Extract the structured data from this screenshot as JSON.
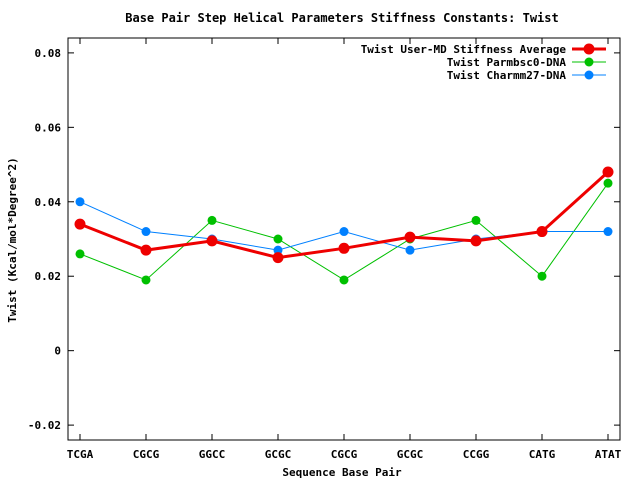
{
  "chart_data": {
    "type": "line",
    "title": "Base Pair Step Helical Parameters Stiffness Constants: Twist",
    "xlabel": "Sequence Base Pair",
    "ylabel": "Twist (Kcal/mol*Degree^2)",
    "categories": [
      "TCGA",
      "CGCG",
      "GGCC",
      "GCGC",
      "CGCG",
      "GCGC",
      "CCGG",
      "CATG",
      "ATAT"
    ],
    "ylim": [
      -0.024,
      0.084
    ],
    "yticks": [
      -0.02,
      0,
      0.02,
      0.04,
      0.06,
      0.08
    ],
    "ytick_labels": [
      "-0.02",
      "0",
      "0.02",
      "0.04",
      "0.06",
      "0.08"
    ],
    "grid": false,
    "legend_position": "top-right",
    "series": [
      {
        "name": "Twist User-MD Stiffness Average",
        "color": "#ee0000",
        "values": [
          0.034,
          0.027,
          0.0295,
          0.025,
          0.0275,
          0.0305,
          0.0295,
          0.032,
          0.048
        ]
      },
      {
        "name": "Twist Parmbsc0-DNA",
        "color": "#00c000",
        "values": [
          0.026,
          0.019,
          0.035,
          0.03,
          0.019,
          0.03,
          0.035,
          0.02,
          0.045
        ]
      },
      {
        "name": "Twist Charmm27-DNA",
        "color": "#0080ff",
        "values": [
          0.04,
          0.032,
          0.03,
          0.027,
          0.032,
          0.027,
          0.03,
          0.032,
          0.032
        ]
      }
    ]
  }
}
